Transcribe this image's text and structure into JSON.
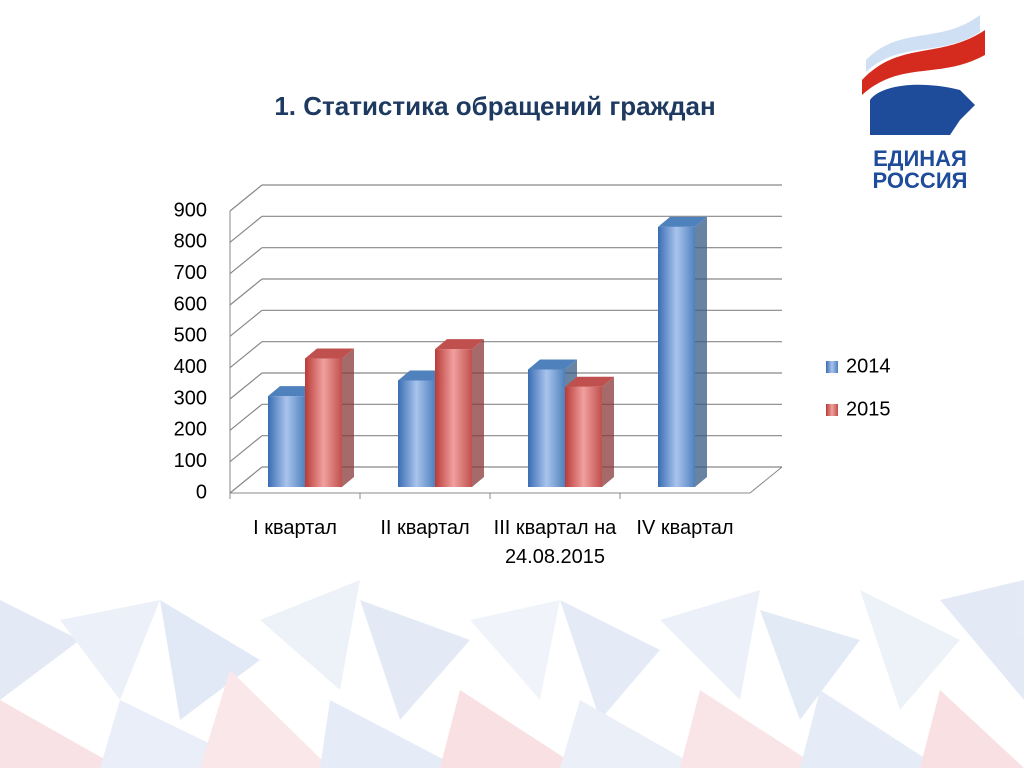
{
  "chart_data": {
    "type": "bar3d",
    "title": "1. Статистика обращений граждан",
    "categories": [
      "I квартал",
      "II квартал",
      "III квартал на 24.08.2015",
      "IV квартал"
    ],
    "series": [
      {
        "name": "2014",
        "color": "#4f81bd",
        "values": [
          290,
          340,
          375,
          830
        ]
      },
      {
        "name": "2015",
        "color": "#c0504d",
        "values": [
          410,
          440,
          320,
          null
        ]
      }
    ],
    "ylim": [
      0,
      900
    ],
    "yticks": [
      0,
      100,
      200,
      300,
      400,
      500,
      600,
      700,
      800,
      900
    ],
    "grid": true,
    "legend": "right"
  },
  "logo": {
    "line1": "ЕДИНАЯ",
    "line2": "РОССИЯ"
  }
}
